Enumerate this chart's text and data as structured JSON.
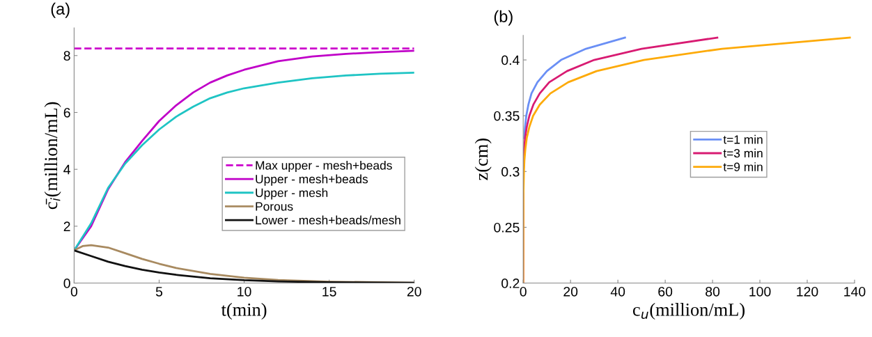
{
  "chart_data": [
    {
      "type": "line",
      "title": "(a)",
      "xlabel": "t(min)",
      "ylabel": "c̄$_{i}$(million/mL)",
      "xlim": [
        0,
        20
      ],
      "ylim": [
        0,
        8.97
      ],
      "xticks": [
        0,
        5,
        10,
        15,
        20
      ],
      "yticks": [
        0,
        2,
        4,
        6,
        8
      ],
      "grid": false,
      "legend": "right",
      "marker": "none",
      "series": [
        {
          "name": "Max upper - mesh+beads",
          "color": "#cc00cc",
          "line_style": "dashed",
          "x": [
            0,
            20
          ],
          "values": [
            8.25,
            8.25
          ]
        },
        {
          "name": "Upper - mesh+beads",
          "color": "#c000c8",
          "line_style": "solid",
          "x": [
            0,
            1,
            2,
            3,
            4,
            5,
            6,
            7,
            8,
            9,
            10,
            12,
            14,
            16,
            18,
            20
          ],
          "values": [
            1.15,
            2.0,
            3.3,
            4.25,
            5.0,
            5.7,
            6.25,
            6.7,
            7.05,
            7.3,
            7.5,
            7.8,
            7.97,
            8.06,
            8.12,
            8.17
          ]
        },
        {
          "name": "Upper - mesh",
          "color": "#1fc4c4",
          "line_style": "solid",
          "x": [
            0,
            1,
            2,
            3,
            4,
            5,
            6,
            7,
            8,
            9,
            10,
            12,
            14,
            16,
            18,
            20
          ],
          "values": [
            1.15,
            2.1,
            3.35,
            4.2,
            4.85,
            5.4,
            5.85,
            6.2,
            6.5,
            6.7,
            6.85,
            7.05,
            7.2,
            7.3,
            7.36,
            7.4
          ]
        },
        {
          "name": "Porous",
          "color": "#a88a60",
          "line_style": "solid",
          "x": [
            0,
            0.5,
            1,
            2,
            3,
            4,
            5,
            6,
            8,
            10,
            12,
            15,
            20
          ],
          "values": [
            1.15,
            1.3,
            1.33,
            1.25,
            1.05,
            0.85,
            0.68,
            0.53,
            0.32,
            0.19,
            0.11,
            0.05,
            0.01
          ]
        },
        {
          "name": "Lower - mesh+beads/mesh",
          "color": "#111111",
          "line_style": "solid",
          "x": [
            0,
            1,
            2,
            3,
            4,
            5,
            6,
            8,
            10,
            12,
            15,
            20
          ],
          "values": [
            1.15,
            0.95,
            0.75,
            0.6,
            0.47,
            0.37,
            0.29,
            0.17,
            0.1,
            0.06,
            0.03,
            0.01
          ]
        }
      ]
    },
    {
      "type": "line",
      "title": "(b)",
      "xlabel": "c$_{u}$(million/mL)",
      "ylabel": "z(cm)",
      "xlim": [
        0,
        140
      ],
      "ylim": [
        0.2,
        0.422
      ],
      "xticks": [
        0,
        20,
        40,
        60,
        80,
        100,
        120,
        140
      ],
      "yticks": [
        0.2,
        0.25,
        0.3,
        0.35,
        0.4
      ],
      "grid": false,
      "legend": "center",
      "marker": "none",
      "series": [
        {
          "name": "t=1 min",
          "color": "#6a8ff5",
          "line_style": "solid",
          "x": [
            0.4,
            0.8,
            1.3,
            2.2,
            3.5,
            6,
            10,
            16,
            26.5,
            43
          ],
          "values": [
            0.33,
            0.34,
            0.35,
            0.36,
            0.37,
            0.38,
            0.39,
            0.4,
            0.41,
            0.42
          ]
        },
        {
          "name": "t=3 min",
          "color": "#d81b72",
          "line_style": "solid",
          "x": [
            0,
            0.1,
            0.4,
            0.8,
            1.5,
            2.6,
            4.3,
            7,
            11,
            18.5,
            30,
            50,
            82
          ],
          "values": [
            0.2,
            0.3,
            0.32,
            0.33,
            0.34,
            0.35,
            0.36,
            0.37,
            0.38,
            0.39,
            0.4,
            0.41,
            0.42
          ]
        },
        {
          "name": "t=9 min",
          "color": "#fdaa08",
          "line_style": "solid",
          "x": [
            0,
            0.1,
            0.3,
            0.5,
            0.9,
            1.5,
            2.6,
            4.2,
            7,
            11.5,
            19,
            31,
            51,
            84,
            138
          ],
          "values": [
            0.2,
            0.28,
            0.3,
            0.31,
            0.32,
            0.33,
            0.34,
            0.35,
            0.36,
            0.37,
            0.38,
            0.39,
            0.4,
            0.41,
            0.42
          ]
        }
      ]
    }
  ]
}
